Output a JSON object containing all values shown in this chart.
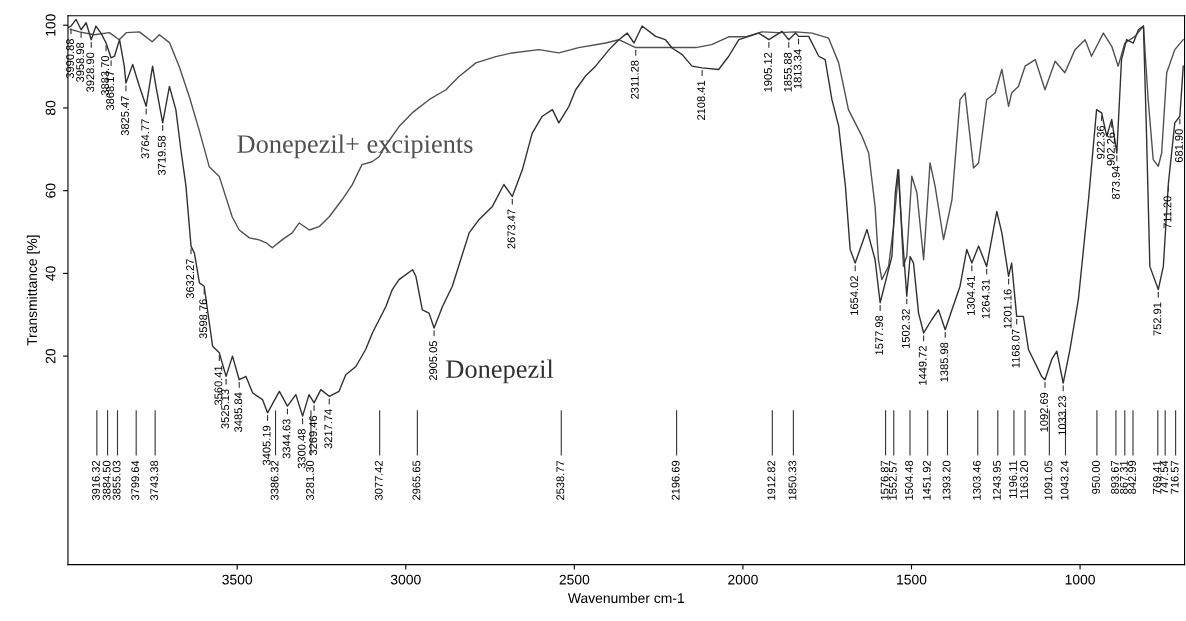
{
  "chart_data": {
    "type": "line",
    "xlabel": "Wavenumber cm-1",
    "ylabel": "Transmittance [%]",
    "xlim": [
      4002,
      690
    ],
    "xticks": [
      3500,
      3000,
      2500,
      2000,
      1500,
      1000
    ],
    "ylim": [
      -30.4,
      102.3
    ],
    "yticks": [
      20,
      40,
      60,
      80,
      100
    ],
    "grid": false,
    "marker": "none",
    "line_style": "solid",
    "series": [
      {
        "name": "Donepezil+ excipients",
        "color": "#505050",
        "x": [
          3995,
          3968,
          3924,
          3879,
          3850,
          3829,
          3790,
          3752,
          3731,
          3701,
          3672,
          3642,
          3613,
          3583,
          3553,
          3515,
          3494,
          3464,
          3435,
          3414,
          3396,
          3367,
          3337,
          3316,
          3286,
          3257,
          3227,
          3189,
          3159,
          3130,
          3100,
          3079,
          3058,
          3020,
          2981,
          2931,
          2881,
          2842,
          2792,
          2733,
          2685,
          2605,
          2546,
          2487,
          2407,
          2368,
          2318,
          2220,
          2140,
          2093,
          2042,
          1992,
          1944,
          1894,
          1844,
          1795,
          1746,
          1716,
          1687,
          1647,
          1627,
          1608,
          1598,
          1588,
          1568,
          1553,
          1538,
          1524,
          1514,
          1499,
          1484,
          1464,
          1445,
          1430,
          1405,
          1380,
          1356,
          1341,
          1316,
          1301,
          1277,
          1252,
          1232,
          1212,
          1203,
          1183,
          1163,
          1133,
          1104,
          1074,
          1045,
          1015,
          985,
          966,
          931,
          906,
          887,
          867,
          837,
          812,
          798,
          783,
          768,
          758,
          743,
          719,
          694
        ],
        "values": [
          99.0,
          98.4,
          97.7,
          98.2,
          96.5,
          98.2,
          98.4,
          96.0,
          97.7,
          95.8,
          90.0,
          82.7,
          74.7,
          65.8,
          63.4,
          53.7,
          50.5,
          48.6,
          48.1,
          47.4,
          46.2,
          48.1,
          49.8,
          52.2,
          50.5,
          51.3,
          53.7,
          57.8,
          61.4,
          66.3,
          67.0,
          68.2,
          71.1,
          75.5,
          78.8,
          82.0,
          84.4,
          87.6,
          90.9,
          92.4,
          93.3,
          94.1,
          93.3,
          94.6,
          95.7,
          96.5,
          94.6,
          94.6,
          94.6,
          95.3,
          97.2,
          97.2,
          98.4,
          98.2,
          98.4,
          98.1,
          96.9,
          90.9,
          79.6,
          73.2,
          69.1,
          56.2,
          43.3,
          38.5,
          41.7,
          51.4,
          65.1,
          41.7,
          44.2,
          63.5,
          59.5,
          43.3,
          66.7,
          61.1,
          48.2,
          57.8,
          82.0,
          83.6,
          65.5,
          66.7,
          82.0,
          83.6,
          89.3,
          80.4,
          83.6,
          85.2,
          90.1,
          91.7,
          84.4,
          91.3,
          88.5,
          94.1,
          96.5,
          92.5,
          98.1,
          94.9,
          90.1,
          95.7,
          97.3,
          99.8,
          82.0,
          67.5,
          65.9,
          69.1,
          88.5,
          94.1,
          96.5
        ]
      },
      {
        "name": "Donepezil",
        "color": "#303030",
        "x": [
          4000,
          3993,
          3978,
          3963,
          3948,
          3933,
          3919,
          3904,
          3889,
          3874,
          3864,
          3849,
          3835,
          3830,
          3810,
          3790,
          3770,
          3751,
          3741,
          3721,
          3701,
          3682,
          3667,
          3652,
          3637,
          3627,
          3612,
          3598,
          3573,
          3553,
          3533,
          3514,
          3494,
          3474,
          3454,
          3425,
          3410,
          3375,
          3351,
          3326,
          3306,
          3287,
          3272,
          3252,
          3227,
          3198,
          3178,
          3148,
          3119,
          3099,
          3079,
          3059,
          3040,
          3020,
          2980,
          2970,
          2951,
          2931,
          2916,
          2891,
          2862,
          2812,
          2783,
          2743,
          2709,
          2684,
          2654,
          2625,
          2595,
          2565,
          2546,
          2516,
          2496,
          2467,
          2437,
          2397,
          2368,
          2343,
          2323,
          2299,
          2259,
          2230,
          2210,
          2180,
          2151,
          2121,
          2072,
          2042,
          2012,
          1953,
          1923,
          1884,
          1864,
          1844,
          1835,
          1805,
          1775,
          1756,
          1736,
          1716,
          1696,
          1682,
          1667,
          1632,
          1608,
          1593,
          1578,
          1558,
          1548,
          1540,
          1529,
          1514,
          1504,
          1494,
          1479,
          1464,
          1440,
          1420,
          1400,
          1380,
          1356,
          1336,
          1321,
          1301,
          1277,
          1247,
          1232,
          1212,
          1203,
          1188,
          1168,
          1153,
          1114,
          1104,
          1084,
          1069,
          1050,
          1030,
          1005,
          975,
          951,
          936,
          921,
          906,
          891,
          877,
          862,
          842,
          827,
          812,
          803,
          793,
          768,
          753,
          738,
          719,
          704,
          694
        ],
        "values": [
          99.5,
          99.8,
          101.4,
          98.9,
          100.6,
          96.5,
          99.8,
          98.1,
          95.7,
          92.1,
          92.5,
          96.5,
          90.1,
          86.0,
          90.5,
          85.2,
          80.4,
          90.1,
          85.2,
          76.4,
          85.2,
          79.6,
          69.9,
          61.1,
          46.6,
          44.9,
          37.7,
          36.9,
          22.4,
          20.8,
          15.1,
          20.0,
          14.3,
          15.1,
          11.1,
          9.5,
          6.3,
          11.5,
          7.9,
          10.7,
          5.5,
          10.7,
          8.7,
          11.9,
          10.3,
          11.5,
          15.5,
          17.5,
          21.6,
          25.6,
          28.8,
          32.0,
          36.1,
          38.5,
          40.9,
          39.3,
          31.2,
          30.4,
          26.8,
          32.0,
          36.9,
          49.8,
          53.0,
          56.2,
          61.5,
          58.6,
          65.1,
          73.9,
          78.0,
          79.6,
          76.4,
          80.4,
          84.4,
          87.7,
          90.1,
          94.1,
          96.5,
          98.1,
          95.7,
          99.8,
          97.3,
          96.5,
          94.5,
          92.9,
          90.1,
          89.7,
          89.3,
          92.5,
          96.5,
          98.1,
          96.5,
          98.5,
          96.5,
          98.1,
          97.3,
          97.3,
          92.5,
          91.7,
          82.0,
          75.6,
          61.1,
          45.8,
          42.5,
          50.6,
          43.3,
          32.9,
          37.7,
          44.1,
          59.5,
          65.1,
          51.4,
          34.5,
          44.1,
          42.5,
          30.4,
          25.6,
          28.8,
          31.2,
          26.4,
          31.2,
          36.9,
          45.8,
          42.5,
          46.6,
          41.7,
          55.0,
          49.8,
          39.3,
          42.5,
          29.6,
          29.6,
          21.6,
          15.1,
          14.3,
          19.2,
          21.2,
          13.5,
          21.6,
          33.7,
          57.8,
          79.6,
          78.8,
          73.2,
          77.2,
          69.1,
          91.7,
          96.5,
          95.7,
          98.9,
          99.8,
          74.0,
          41.7,
          36.1,
          41.7,
          61.8,
          76.4,
          78.0,
          90.1
        ]
      }
    ],
    "annotations": [
      {
        "text": "3990.88",
        "x": 3993,
        "y": 99.8
      },
      {
        "text": "3958.98",
        "x": 3963,
        "y": 98.9
      },
      {
        "text": "3928.90",
        "x": 3933,
        "y": 96.5
      },
      {
        "text": "3883.70",
        "x": 3889,
        "y": 95.7
      },
      {
        "text": "3868.17",
        "x": 3874,
        "y": 92.1
      },
      {
        "text": "3825.47",
        "x": 3830,
        "y": 86.0
      },
      {
        "text": "3764.77",
        "x": 3770,
        "y": 80.4
      },
      {
        "text": "3719.58",
        "x": 3721,
        "y": 76.4
      },
      {
        "text": "3632.27",
        "x": 3637,
        "y": 46.6
      },
      {
        "text": "3598.76",
        "x": 3598,
        "y": 36.9
      },
      {
        "text": "3560.41",
        "x": 3553,
        "y": 20.8
      },
      {
        "text": "3525.13",
        "x": 3533,
        "y": 15.1
      },
      {
        "text": "3485.84",
        "x": 3494,
        "y": 14.3
      },
      {
        "text": "3405.19",
        "x": 3410,
        "y": 6.3
      },
      {
        "text": "3344.63",
        "x": 3351,
        "y": 7.9
      },
      {
        "text": "3300.48",
        "x": 3306,
        "y": 5.5
      },
      {
        "text": "3269.46",
        "x": 3272,
        "y": 8.7
      },
      {
        "text": "3217.74",
        "x": 3227,
        "y": 10.3
      },
      {
        "text": "2905.05",
        "x": 2916,
        "y": 26.8
      },
      {
        "text": "2673.47",
        "x": 2684,
        "y": 58.6
      },
      {
        "text": "2311.28",
        "x": 2318,
        "y": 94.6
      },
      {
        "text": "2108.41",
        "x": 2121,
        "y": 89.7
      },
      {
        "text": "1905.12",
        "x": 1923,
        "y": 96.5
      },
      {
        "text": "1855.88",
        "x": 1864,
        "y": 96.5
      },
      {
        "text": "1813.34",
        "x": 1835,
        "y": 97.3
      },
      {
        "text": "1654.02",
        "x": 1667,
        "y": 42.5
      },
      {
        "text": "1577.98",
        "x": 1593,
        "y": 32.9
      },
      {
        "text": "1502.32",
        "x": 1514,
        "y": 34.5
      },
      {
        "text": "1449.72",
        "x": 1464,
        "y": 25.6
      },
      {
        "text": "1385.98",
        "x": 1400,
        "y": 26.4
      },
      {
        "text": "1304.41",
        "x": 1321,
        "y": 42.5
      },
      {
        "text": "1264.31",
        "x": 1277,
        "y": 41.7
      },
      {
        "text": "1201.16",
        "x": 1212,
        "y": 39.3
      },
      {
        "text": "1168.07",
        "x": 1188,
        "y": 29.6
      },
      {
        "text": "1092.69",
        "x": 1104,
        "y": 14.3
      },
      {
        "text": "1033.23",
        "x": 1050,
        "y": 13.5
      },
      {
        "text": "922.36",
        "x": 936,
        "y": 78.8
      },
      {
        "text": "902.26",
        "x": 906,
        "y": 77.2
      },
      {
        "text": "873.94",
        "x": 891,
        "y": 69.1
      },
      {
        "text": "752.91",
        "x": 768,
        "y": 36.1
      },
      {
        "text": "711.20",
        "x": 738,
        "y": 61.8
      },
      {
        "text": "681.90",
        "x": 704,
        "y": 78.0
      }
    ],
    "ref_lines": [
      {
        "axis": "x",
        "value": 3916.32,
        "label": "3916.32"
      },
      {
        "axis": "x",
        "value": 3884.5,
        "label": "3884.50"
      },
      {
        "axis": "x",
        "value": 3855.03,
        "label": "3855.03"
      },
      {
        "axis": "x",
        "value": 3799.64,
        "label": "3799.64"
      },
      {
        "axis": "x",
        "value": 3743.38,
        "label": "3743.38"
      },
      {
        "axis": "x",
        "value": 3386.32,
        "label": "3386.32"
      },
      {
        "axis": "x",
        "value": 3281.3,
        "label": "3281.30"
      },
      {
        "axis": "x",
        "value": 3077.42,
        "label": "3077.42"
      },
      {
        "axis": "x",
        "value": 2965.65,
        "label": "2965.65"
      },
      {
        "axis": "x",
        "value": 2538.77,
        "label": "2538.77"
      },
      {
        "axis": "x",
        "value": 2196.69,
        "label": "2196.69"
      },
      {
        "axis": "x",
        "value": 1912.82,
        "label": "1912.82"
      },
      {
        "axis": "x",
        "value": 1850.33,
        "label": "1850.33"
      },
      {
        "axis": "x",
        "value": 1576.87,
        "label": "1576.87"
      },
      {
        "axis": "x",
        "value": 1552.57,
        "label": "1552.57"
      },
      {
        "axis": "x",
        "value": 1504.48,
        "label": "1504.48"
      },
      {
        "axis": "x",
        "value": 1451.92,
        "label": "1451.92"
      },
      {
        "axis": "x",
        "value": 1393.2,
        "label": "1393.20"
      },
      {
        "axis": "x",
        "value": 1303.46,
        "label": "1303.46"
      },
      {
        "axis": "x",
        "value": 1243.95,
        "label": "1243.95"
      },
      {
        "axis": "x",
        "value": 1196.11,
        "label": "1196.11"
      },
      {
        "axis": "x",
        "value": 1163.2,
        "label": "1163.20"
      },
      {
        "axis": "x",
        "value": 1091.05,
        "label": "1091.05"
      },
      {
        "axis": "x",
        "value": 1043.24,
        "label": "1043.24"
      },
      {
        "axis": "x",
        "value": 950.0,
        "label": "950.00"
      },
      {
        "axis": "x",
        "value": 893.67,
        "label": "893.67"
      },
      {
        "axis": "x",
        "value": 867.31,
        "label": "867.31"
      },
      {
        "axis": "x",
        "value": 842.99,
        "label": "842.99"
      },
      {
        "axis": "x",
        "value": 769.41,
        "label": "769.41"
      },
      {
        "axis": "x",
        "value": 747.54,
        "label": "747.54"
      },
      {
        "axis": "x",
        "value": 716.57,
        "label": "716.57"
      }
    ]
  }
}
